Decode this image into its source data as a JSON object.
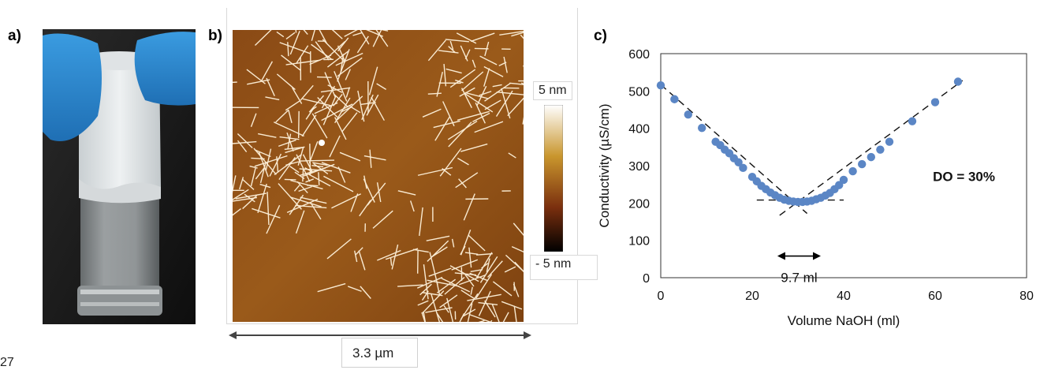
{
  "panels": {
    "a_label": "a)",
    "b_label": "b)",
    "c_label": "c)"
  },
  "afm": {
    "colorbar_max": "5 nm",
    "colorbar_min": "- 5 nm",
    "scale_bar": "3.3 µm",
    "colors": {
      "low": "#000000",
      "mid": "#9a5a1a",
      "high": "#ffffff"
    }
  },
  "page_corner_number": "27",
  "chart_data": {
    "type": "scatter",
    "xlabel": "Volume NaOH (ml)",
    "ylabel": "Conductivity (µS/cm)",
    "xlim": [
      0,
      80
    ],
    "ylim": [
      0,
      600
    ],
    "x_ticks": [
      "0",
      "20",
      "40",
      "60",
      "80"
    ],
    "y_ticks": [
      "0",
      "100",
      "200",
      "300",
      "400",
      "500",
      "600"
    ],
    "grid": false,
    "legend": "none",
    "marker_color": "#5b86c5",
    "series": [
      {
        "x": [
          0,
          3,
          6,
          9,
          12,
          13,
          14,
          15,
          16,
          17,
          18,
          20,
          21,
          22,
          23,
          24,
          25,
          26,
          27,
          28,
          29,
          30,
          31,
          32,
          33,
          34,
          35,
          36,
          37,
          38,
          39,
          40,
          42,
          44,
          46,
          48,
          50,
          55,
          60,
          65
        ],
        "y": [
          515,
          478,
          437,
          401,
          364,
          355,
          343,
          333,
          320,
          309,
          294,
          270,
          258,
          246,
          237,
          228,
          221,
          214,
          209,
          206,
          204,
          203,
          203,
          204,
          206,
          210,
          214,
          220,
          227,
          237,
          248,
          262,
          285,
          304,
          323,
          343,
          364,
          419,
          470,
          525
        ]
      }
    ],
    "fit_lines": [
      {
        "x": [
          0,
          32
        ],
        "y": [
          517,
          172
        ]
      },
      {
        "x": [
          26,
          66
        ],
        "y": [
          167,
          528
        ]
      },
      {
        "x": [
          21,
          40
        ],
        "y": [
          208,
          208
        ]
      }
    ],
    "annotations": {
      "do_text": "DO = 30%",
      "width_text": "9.7 ml",
      "arrow_x": [
        25.5,
        35
      ]
    }
  }
}
